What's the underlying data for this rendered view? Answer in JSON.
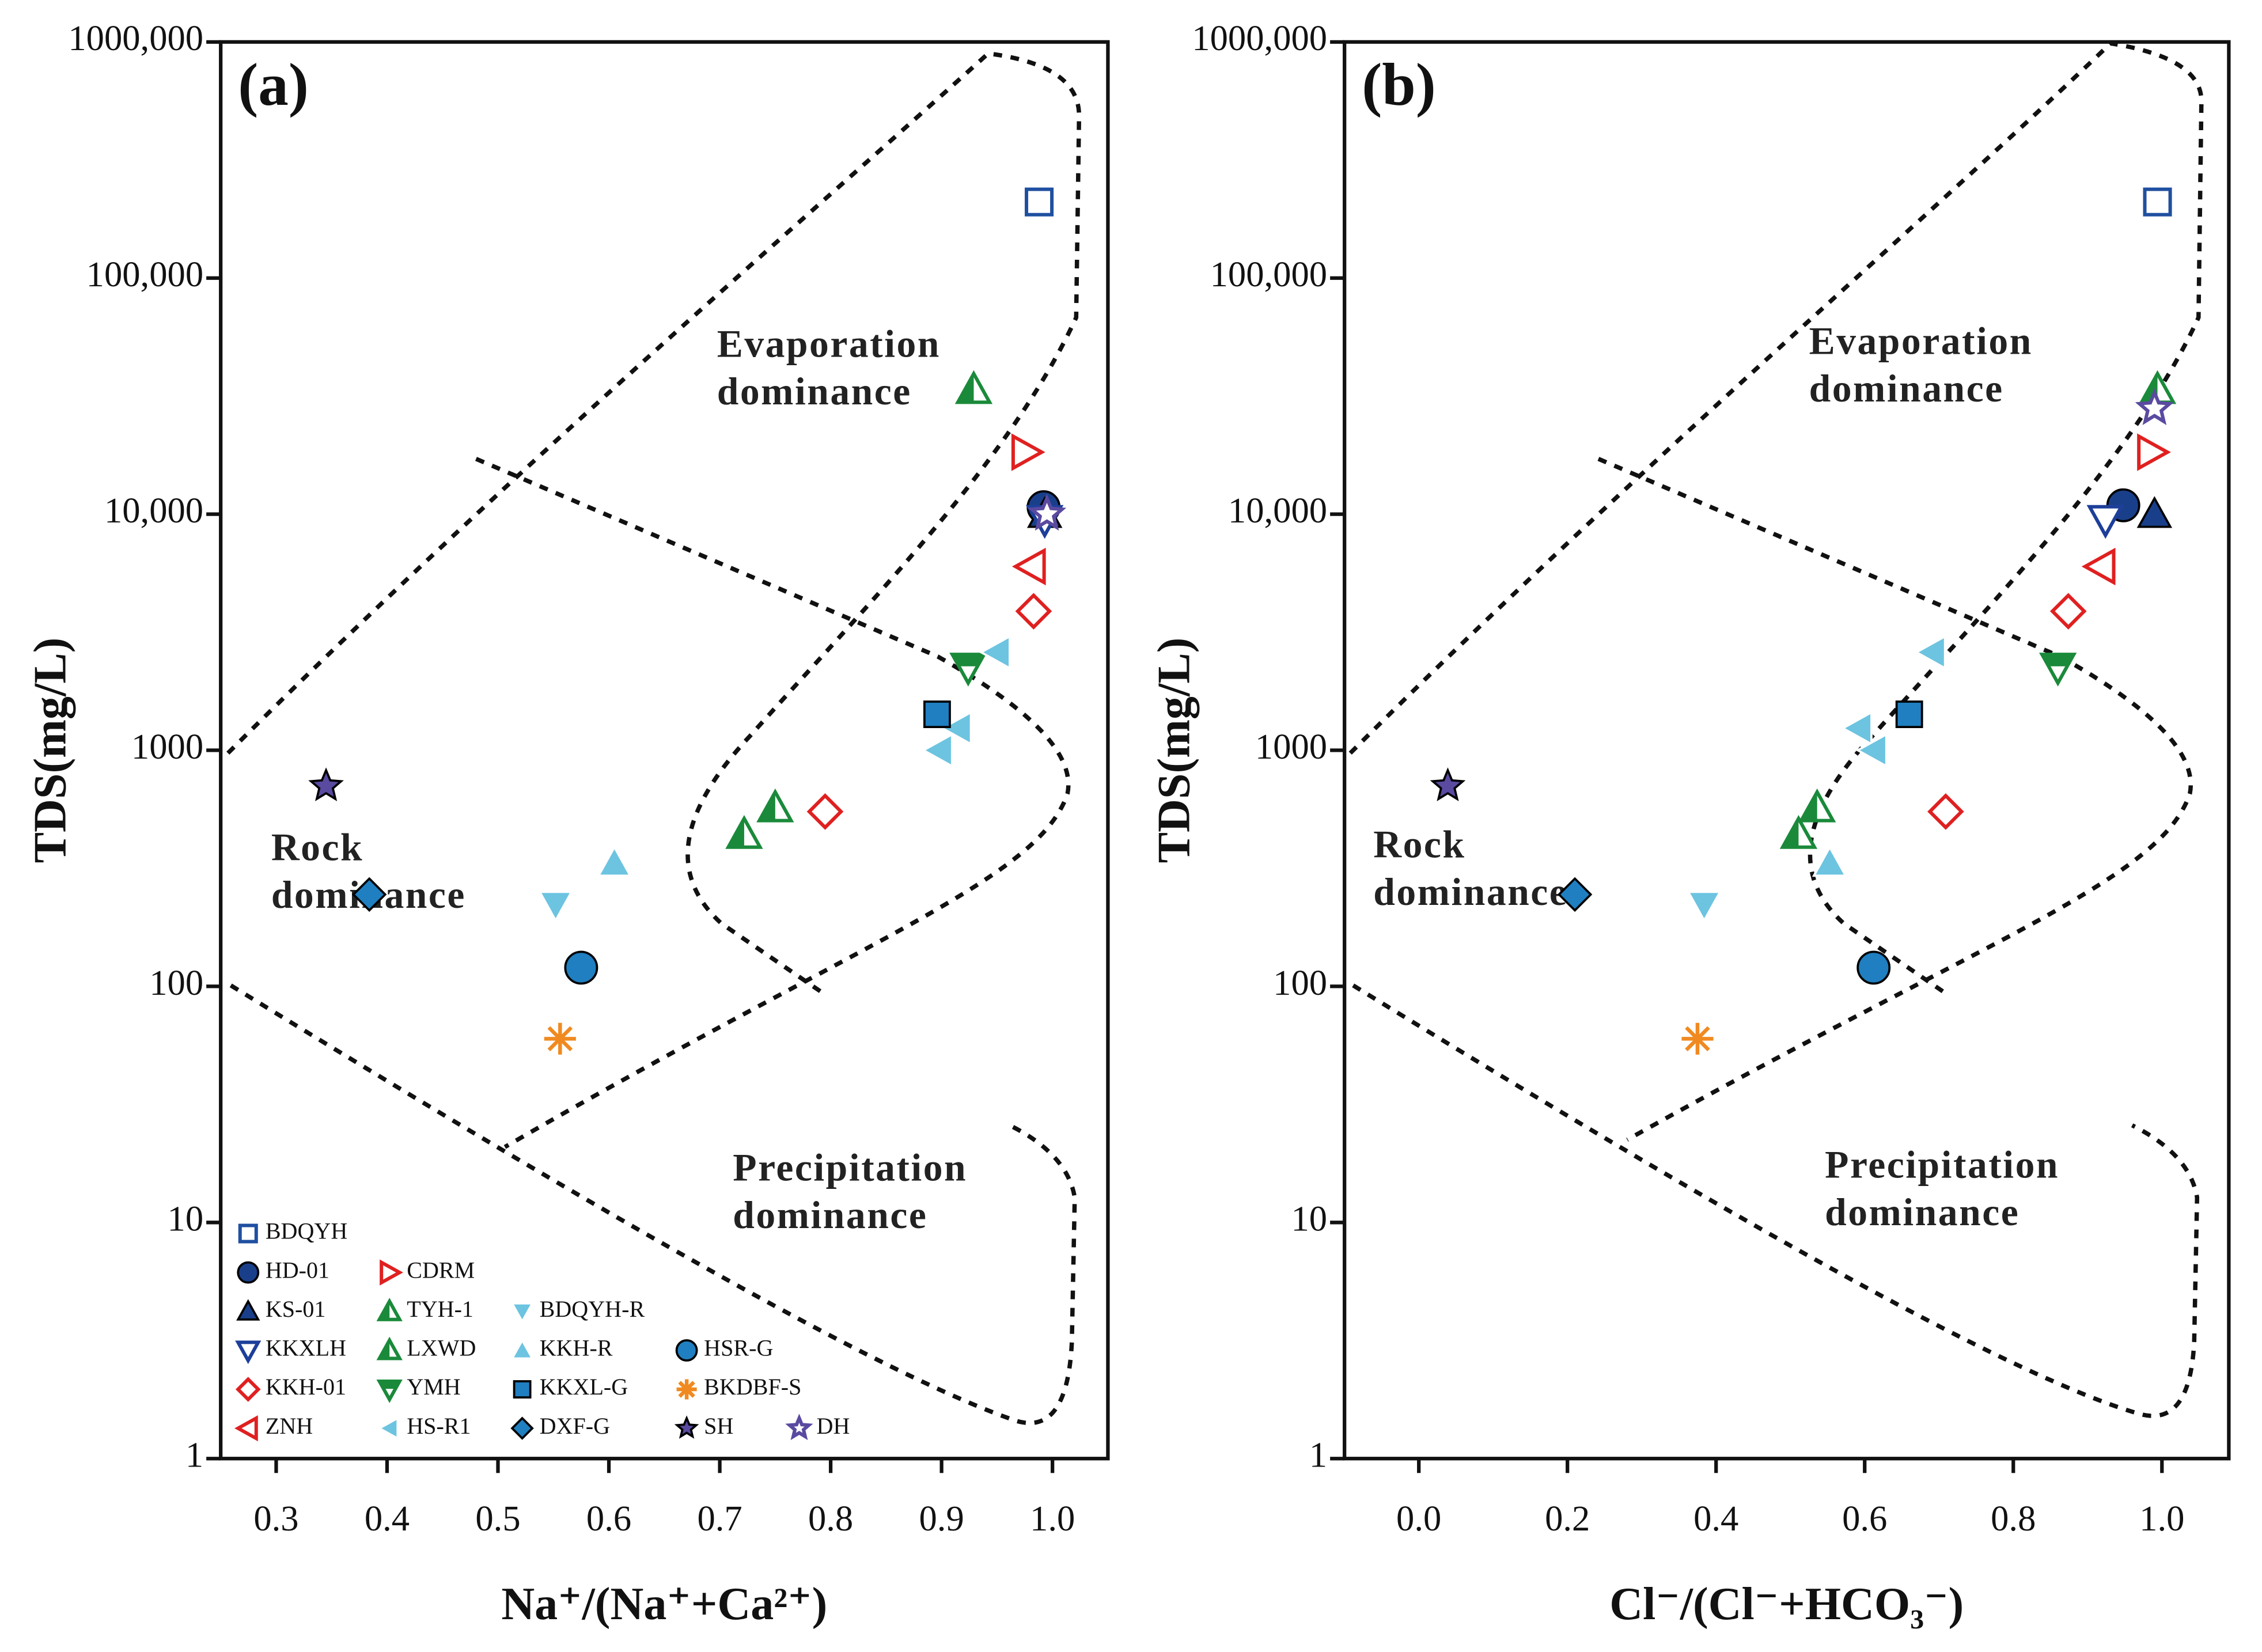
{
  "chart_data": [
    {
      "type": "scatter",
      "title": "(a)",
      "xlabel": "Na⁺/(Na⁺+Ca²⁺)",
      "ylabel": "TDS(mg/L)",
      "xlim": [
        0.25,
        1.05
      ],
      "xticks": [
        0.3,
        0.4,
        0.5,
        0.6,
        0.7,
        0.8,
        0.9,
        {
          "value": 1,
          "label": "1.0"
        }
      ],
      "ylim": [
        1,
        1000000
      ],
      "yscale": "log",
      "yticks": [
        1,
        10,
        100,
        1000,
        {
          "value": 10000,
          "label": "10,000"
        },
        {
          "value": 100000,
          "label": "100,000"
        },
        {
          "value": 1000000,
          "label": "1000,000"
        }
      ],
      "annotations": [
        [
          "Evaporation",
          "dominance"
        ],
        [
          "Rock",
          "dominance"
        ],
        [
          "Precipitation",
          "dominance"
        ]
      ],
      "legend": "lower left",
      "series": [
        {
          "name": "BDQYH",
          "color": "#1f4fa0",
          "marker": "square-open",
          "x": [
            0.988
          ],
          "y": [
            210000
          ]
        },
        {
          "name": "HD-01",
          "color": "#1a3f8a",
          "marker": "circle-filled",
          "x": [
            0.992
          ],
          "y": [
            10700
          ]
        },
        {
          "name": "KS-01",
          "color": "#1a3f8a",
          "marker": "triup-filled",
          "x": [
            0.993
          ],
          "y": [
            10000
          ]
        },
        {
          "name": "KKXLH",
          "color": "#1d3f9a",
          "marker": "tridown-open",
          "x": [
            0.993
          ],
          "y": [
            9500
          ]
        },
        {
          "name": "KKH-01",
          "color": "#e02020",
          "marker": "diamond-open",
          "x": [
            0.983,
            0.795
          ],
          "y": [
            3880,
            550
          ]
        },
        {
          "name": "ZNH",
          "color": "#e02020",
          "marker": "trileft-open",
          "x": [
            0.981
          ],
          "y": [
            6000
          ]
        },
        {
          "name": "CDRM",
          "color": "#e02020",
          "marker": "triright-open",
          "x": [
            0.976
          ],
          "y": [
            18300
          ]
        },
        {
          "name": "TYH-1",
          "color": "#1a8a3a",
          "marker": "triup-half",
          "x": [
            0.722,
            0.75
          ],
          "y": [
            440,
            570
          ]
        },
        {
          "name": "LXWD",
          "color": "#1a8a3a",
          "marker": "triup-half",
          "x": [
            0.929
          ],
          "y": [
            33700
          ]
        },
        {
          "name": "YMH",
          "color": "#1a8a3a",
          "marker": "tridown-half",
          "x": [
            0.924
          ],
          "y": [
            2250
          ]
        },
        {
          "name": "HS-R1",
          "color": "#6cc4e0",
          "marker": "trileft-filled",
          "x": [
            0.95,
            0.915,
            0.898
          ],
          "y": [
            2600,
            1240,
            1000
          ]
        },
        {
          "name": "BDQYH-R",
          "color": "#6cc4e0",
          "marker": "tridown-filled",
          "x": [
            0.552
          ],
          "y": [
            222
          ]
        },
        {
          "name": "KKH-R",
          "color": "#6cc4e0",
          "marker": "triup-filled",
          "x": [
            0.605
          ],
          "y": [
            333
          ]
        },
        {
          "name": "KKXL-G",
          "color": "#1f7fc0",
          "marker": "square-filled",
          "x": [
            0.896
          ],
          "y": [
            1420
          ]
        },
        {
          "name": "DXF-G",
          "color": "#1f7fc0",
          "marker": "diamond-filled",
          "x": [
            0.384
          ],
          "y": [
            245
          ]
        },
        {
          "name": "HSR-G",
          "color": "#1f7fc0",
          "marker": "circle-filled",
          "x": [
            0.575
          ],
          "y": [
            120
          ]
        },
        {
          "name": "BKDBF-S",
          "color": "#f08a20",
          "marker": "asterisk-filled",
          "x": [
            0.556
          ],
          "y": [
            60
          ]
        },
        {
          "name": "SH",
          "color": "#5a4aa0",
          "marker": "star-filled",
          "x": [
            0.345
          ],
          "y": [
            705
          ]
        },
        {
          "name": "DH",
          "color": "#5a4aa0",
          "marker": "star-open",
          "x": [
            0.995
          ],
          "y": [
            10000
          ]
        }
      ]
    },
    {
      "type": "scatter",
      "title": "(b)",
      "xlabel": "Cl⁻/(Cl⁻+HCO₃⁻)",
      "ylabel": "TDS(mg/L)",
      "xlim": [
        -0.1,
        1.09
      ],
      "xticks": [
        {
          "value": 0,
          "label": "0.0"
        },
        0.2,
        0.4,
        0.6,
        0.8,
        {
          "value": 1,
          "label": "1.0"
        }
      ],
      "ylim": [
        1,
        1000000
      ],
      "yscale": "log",
      "yticks": [
        1,
        10,
        100,
        1000,
        {
          "value": 10000,
          "label": "10,000"
        },
        {
          "value": 100000,
          "label": "100,000"
        },
        {
          "value": 1000000,
          "label": "1000,000"
        }
      ],
      "annotations": [
        [
          "Evaporation",
          "dominance"
        ],
        [
          "Rock",
          "dominance"
        ],
        [
          "Precipitation",
          "dominance"
        ]
      ],
      "series": [
        {
          "color": "#1f4fa0",
          "marker": "square-open",
          "x": [
            0.994
          ],
          "y": [
            210000
          ]
        },
        {
          "color": "#1a3f8a",
          "marker": "circle-filled",
          "x": [
            0.948
          ],
          "y": [
            10900
          ]
        },
        {
          "color": "#1a3f8a",
          "marker": "triup-filled",
          "x": [
            0.99
          ],
          "y": [
            10000
          ]
        },
        {
          "color": "#1d3f9a",
          "marker": "tridown-open",
          "x": [
            0.924
          ],
          "y": [
            9500
          ]
        },
        {
          "color": "#e02020",
          "marker": "diamond-open",
          "x": [
            0.874,
            0.709
          ],
          "y": [
            3880,
            550
          ]
        },
        {
          "color": "#e02020",
          "marker": "trileft-open",
          "x": [
            0.918
          ],
          "y": [
            6000
          ]
        },
        {
          "color": "#e02020",
          "marker": "triright-open",
          "x": [
            0.986
          ],
          "y": [
            18300
          ]
        },
        {
          "color": "#1a8a3a",
          "marker": "triup-half",
          "x": [
            0.511,
            0.536
          ],
          "y": [
            440,
            570
          ]
        },
        {
          "color": "#1a8a3a",
          "marker": "triup-half",
          "x": [
            0.994
          ],
          "y": [
            33700
          ]
        },
        {
          "color": "#1a8a3a",
          "marker": "tridown-half",
          "x": [
            0.86
          ],
          "y": [
            2250
          ]
        },
        {
          "color": "#6cc4e0",
          "marker": "trileft-filled",
          "x": [
            0.691,
            0.592,
            0.612
          ],
          "y": [
            2600,
            1240,
            1000
          ]
        },
        {
          "color": "#6cc4e0",
          "marker": "tridown-filled",
          "x": [
            0.384
          ],
          "y": [
            222
          ]
        },
        {
          "color": "#6cc4e0",
          "marker": "triup-filled",
          "x": [
            0.553
          ],
          "y": [
            333
          ]
        },
        {
          "color": "#1f7fc0",
          "marker": "square-filled",
          "x": [
            0.66
          ],
          "y": [
            1420
          ]
        },
        {
          "color": "#1f7fc0",
          "marker": "diamond-filled",
          "x": [
            0.21
          ],
          "y": [
            245
          ]
        },
        {
          "color": "#1f7fc0",
          "marker": "circle-filled",
          "x": [
            0.612
          ],
          "y": [
            120
          ]
        },
        {
          "color": "#f08a20",
          "marker": "asterisk-filled",
          "x": [
            0.375
          ],
          "y": [
            60
          ]
        },
        {
          "color": "#5a4aa0",
          "marker": "star-filled",
          "x": [
            0.039
          ],
          "y": [
            705
          ]
        },
        {
          "color": "#5a4aa0",
          "marker": "star-open",
          "x": [
            0.99
          ],
          "y": [
            28000
          ]
        }
      ]
    }
  ]
}
